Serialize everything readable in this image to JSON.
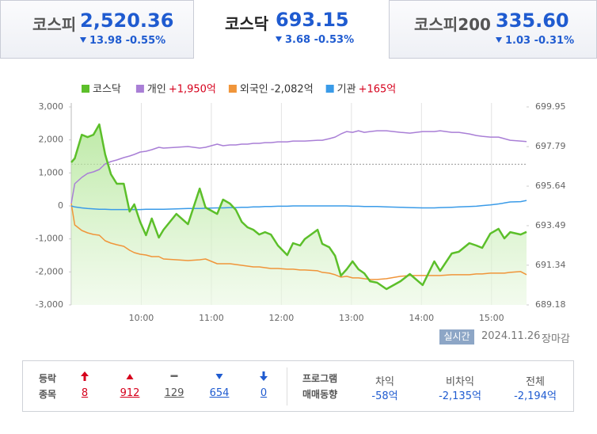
{
  "tabs": [
    {
      "name": "코스피",
      "value": "2,520.36",
      "change": "13.98",
      "rate": "-0.55%"
    },
    {
      "name": "코스닥",
      "value": "693.15",
      "change": "3.68",
      "rate": "-0.53%"
    },
    {
      "name": "코스피200",
      "value": "335.60",
      "change": "1.03",
      "rate": "-0.31%"
    }
  ],
  "chart_data": {
    "type": "line",
    "x": [
      "09:00",
      "09:03",
      "09:09",
      "09:14",
      "09:19",
      "09:24",
      "09:29",
      "09:34",
      "09:39",
      "09:45",
      "09:50",
      "09:54",
      "09:59",
      "10:04",
      "10:09",
      "10:15",
      "10:19",
      "10:30",
      "10:40",
      "10:50",
      "10:55",
      "11:05",
      "11:10",
      "11:16",
      "11:21",
      "11:26",
      "11:31",
      "11:36",
      "11:41",
      "11:46",
      "11:51",
      "11:57",
      "12:05",
      "12:10",
      "12:16",
      "12:20",
      "12:31",
      "12:35",
      "12:41",
      "12:46",
      "12:51",
      "12:56",
      "13:01",
      "13:06",
      "13:11",
      "13:16",
      "13:22",
      "13:30",
      "13:42",
      "13:50",
      "14:01",
      "14:11",
      "14:16",
      "14:26",
      "14:32",
      "14:41",
      "14:47",
      "14:52",
      "14:59",
      "15:06",
      "15:11",
      "15:16",
      "15:25",
      "15:30"
    ],
    "xlim": [
      "09:00",
      "15:30"
    ],
    "xticks": [
      "10:00",
      "11:00",
      "12:00",
      "13:00",
      "14:00",
      "15:00"
    ],
    "ylim": [
      -3000,
      3000
    ],
    "yticks": [
      {
        "value": 3000,
        "label": "3,000"
      },
      {
        "value": 2000,
        "label": "2,000"
      },
      {
        "value": 1000,
        "label": "1,000"
      },
      0,
      {
        "value": -1000,
        "label": "-1,000"
      },
      {
        "value": -2000,
        "label": "-2,000"
      },
      {
        "value": -3000,
        "label": "-3,000"
      }
    ],
    "y2lim": [
      689.18,
      699.95
    ],
    "y2ticks": [
      699.95,
      697.79,
      695.64,
      693.49,
      691.34,
      689.18
    ],
    "reference_value": 696.83,
    "series": [
      {
        "name": "코스닥",
        "color": "#5cbf2a",
        "axis": "y2",
        "values": [
          696.93,
          697.15,
          698.44,
          698.31,
          698.44,
          699.0,
          697.37,
          696.29,
          695.77,
          695.77,
          694.26,
          694.65,
          693.7,
          692.97,
          693.88,
          692.84,
          693.27,
          694.13,
          693.57,
          695.51,
          694.48,
          694.13,
          694.91,
          694.69,
          694.35,
          693.7,
          693.4,
          693.27,
          693.01,
          693.14,
          693.01,
          692.41,
          691.89,
          692.54,
          692.41,
          692.76,
          693.27,
          692.5,
          692.32,
          691.85,
          690.77,
          691.12,
          691.55,
          691.12,
          690.9,
          690.47,
          690.39,
          690.04,
          690.47,
          690.86,
          690.26,
          691.55,
          691.03,
          691.98,
          692.07,
          692.54,
          692.41,
          692.28,
          693.06,
          693.32,
          692.8,
          693.14,
          693.01,
          693.15
        ]
      },
      {
        "name": "개인",
        "legend_label": "+1,950억",
        "legend_color": "#d6001c",
        "color": "#a97fd6",
        "values": [
          72,
          671,
          863,
          983,
          1031,
          1103,
          1271,
          1343,
          1391,
          1463,
          1511,
          1559,
          1631,
          1655,
          1703,
          1775,
          1751,
          1775,
          1799,
          1751,
          1775,
          1871,
          1823,
          1847,
          1847,
          1871,
          1871,
          1895,
          1895,
          1918,
          1918,
          1942,
          1942,
          1966,
          1966,
          1966,
          1990,
          1990,
          2038,
          2086,
          2182,
          2254,
          2230,
          2278,
          2230,
          2254,
          2278,
          2278,
          2230,
          2206,
          2254,
          2254,
          2278,
          2230,
          2230,
          2182,
          2134,
          2110,
          2086,
          2086,
          2038,
          1990,
          1966,
          1950
        ]
      },
      {
        "name": "외국인",
        "legend_label": "-2,082억",
        "legend_color": "#333333",
        "color": "#f0953a",
        "values": [
          72,
          -576,
          -743,
          -815,
          -863,
          -887,
          -1055,
          -1127,
          -1175,
          -1223,
          -1343,
          -1415,
          -1463,
          -1487,
          -1535,
          -1535,
          -1607,
          -1631,
          -1655,
          -1631,
          -1607,
          -1751,
          -1751,
          -1751,
          -1775,
          -1799,
          -1823,
          -1847,
          -1847,
          -1871,
          -1895,
          -1895,
          -1918,
          -1918,
          -1942,
          -1942,
          -1966,
          -2014,
          -2038,
          -2086,
          -2158,
          -2134,
          -2182,
          -2182,
          -2206,
          -2230,
          -2230,
          -2206,
          -2134,
          -2110,
          -2110,
          -2110,
          -2110,
          -2086,
          -2086,
          -2086,
          -2062,
          -2062,
          -2038,
          -2038,
          -2038,
          -2014,
          -1990,
          -2082
        ]
      },
      {
        "name": "기관",
        "legend_label": "+165억",
        "legend_color": "#d6001c",
        "color": "#3a9be8",
        "values": [
          0,
          -30,
          -60,
          -80,
          -90,
          -100,
          -100,
          -110,
          -110,
          -110,
          -110,
          -110,
          -110,
          -100,
          -100,
          -100,
          -100,
          -90,
          -80,
          -80,
          -70,
          -60,
          -60,
          -50,
          -50,
          -40,
          -40,
          -30,
          -30,
          -20,
          -20,
          -10,
          -10,
          0,
          0,
          0,
          0,
          0,
          0,
          0,
          0,
          0,
          -10,
          -10,
          -20,
          -20,
          -20,
          -30,
          -40,
          -50,
          -60,
          -60,
          -50,
          -40,
          -30,
          -20,
          -10,
          10,
          30,
          60,
          90,
          120,
          130,
          165
        ]
      }
    ]
  },
  "status": {
    "button": "실시간",
    "date": "2024.11.26",
    "state": "장마감"
  },
  "breadth": {
    "title": [
      "등락",
      "종목"
    ],
    "counts": [
      "8",
      "912",
      "129",
      "654",
      "0"
    ]
  },
  "program": {
    "title": [
      "프로그램",
      "매매동향"
    ],
    "columns": [
      {
        "name": "차익",
        "value": "-58억"
      },
      {
        "name": "비차익",
        "value": "-2,135억"
      },
      {
        "name": "전체",
        "value": "-2,194억"
      }
    ]
  }
}
